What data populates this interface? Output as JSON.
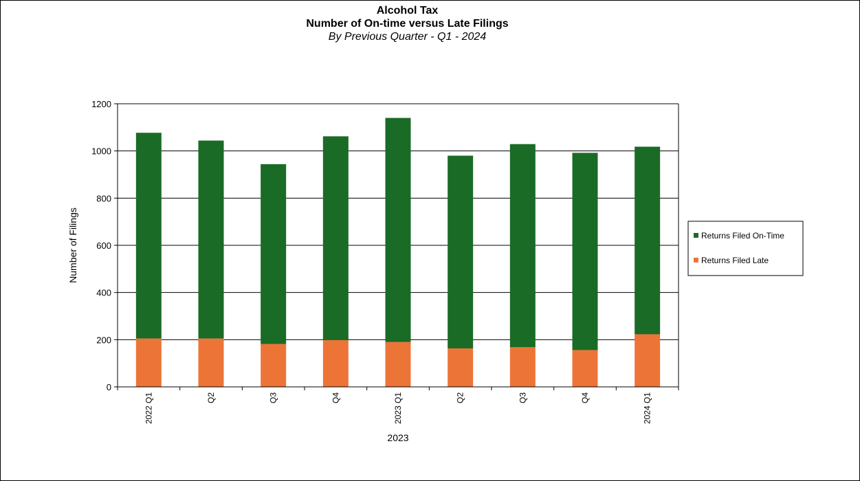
{
  "chart_data": {
    "type": "bar",
    "stacked": true,
    "title": "Alcohol Tax",
    "subtitle": "Number of On-time versus Late Filings",
    "subtitle2": "By Previous Quarter - Q1 - 2024",
    "xlabel": "2023",
    "ylabel": "Number of Filings",
    "ylim": [
      0,
      1200
    ],
    "yticks": [
      0,
      200,
      400,
      600,
      800,
      1000,
      1200
    ],
    "grid": true,
    "legend_position": "right",
    "categories": [
      "2022 Q1",
      "Q2",
      "Q3",
      "Q4",
      "2023 Q1",
      "Q2",
      "Q3",
      "Q4",
      "2024 Q1"
    ],
    "series": [
      {
        "name": "Returns Filed Late",
        "color": "#ed7437",
        "values": [
          205,
          205,
          182,
          198,
          190,
          163,
          168,
          156,
          223
        ]
      },
      {
        "name": "Returns Filed On-Time",
        "color": "#1a6b26",
        "values": [
          872,
          839,
          762,
          864,
          950,
          817,
          861,
          836,
          795
        ]
      }
    ]
  }
}
